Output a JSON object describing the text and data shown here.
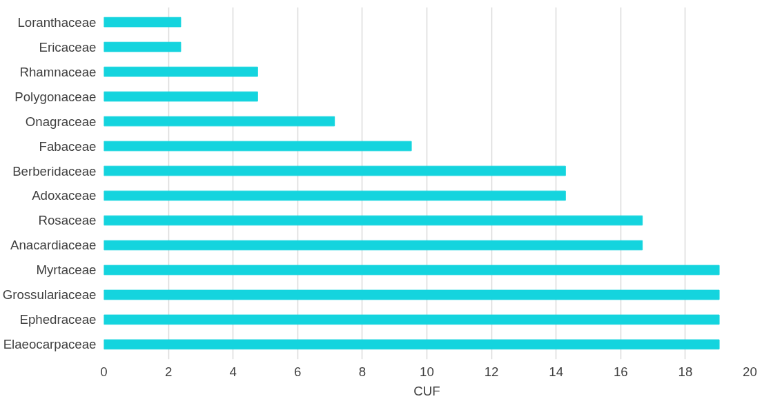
{
  "chart_data": {
    "type": "bar",
    "orientation": "horizontal",
    "xlabel": "CUF",
    "categories": [
      "Loranthaceae",
      "Ericaceae",
      "Rhamnaceae",
      "Polygonaceae",
      "Onagraceae",
      "Fabaceae",
      "Berberidaceae",
      "Adoxaceae",
      "Rosaceae",
      "Anacardiaceae",
      "Myrtaceae",
      "Grossulariaceae",
      "Ephedraceae",
      "Elaeocarpaceae"
    ],
    "values": [
      2.38,
      2.38,
      4.76,
      4.76,
      7.14,
      9.52,
      14.29,
      14.29,
      16.67,
      16.67,
      19.05,
      19.05,
      19.05,
      19.05
    ],
    "color": "#14d4de",
    "xlim": [
      0,
      20
    ],
    "xticks": [
      0,
      2,
      4,
      6,
      8,
      10,
      12,
      14,
      16,
      18,
      20
    ],
    "grid": "x"
  }
}
